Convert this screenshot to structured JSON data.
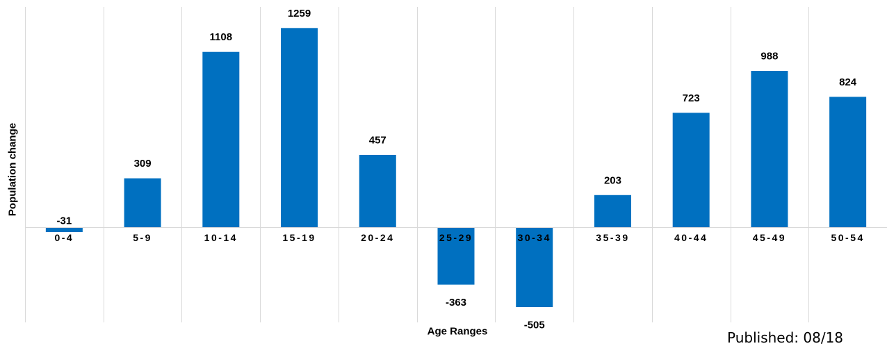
{
  "chart_data": {
    "type": "bar",
    "title": "",
    "xlabel": "Age Ranges",
    "ylabel": "Population change",
    "categories": [
      "0-4",
      "5-9",
      "10-14",
      "15-19",
      "20-24",
      "25-29",
      "30-34",
      "35-39",
      "40-44",
      "45-49",
      "50-54"
    ],
    "values": [
      -31,
      309,
      1108,
      1259,
      457,
      -363,
      -505,
      203,
      723,
      988,
      824
    ],
    "ylim": [
      -700,
      1450
    ],
    "grid": "vertical separators",
    "legend": "none",
    "bar_color": "#0070C0"
  },
  "footer_text": "Published: 08/18"
}
